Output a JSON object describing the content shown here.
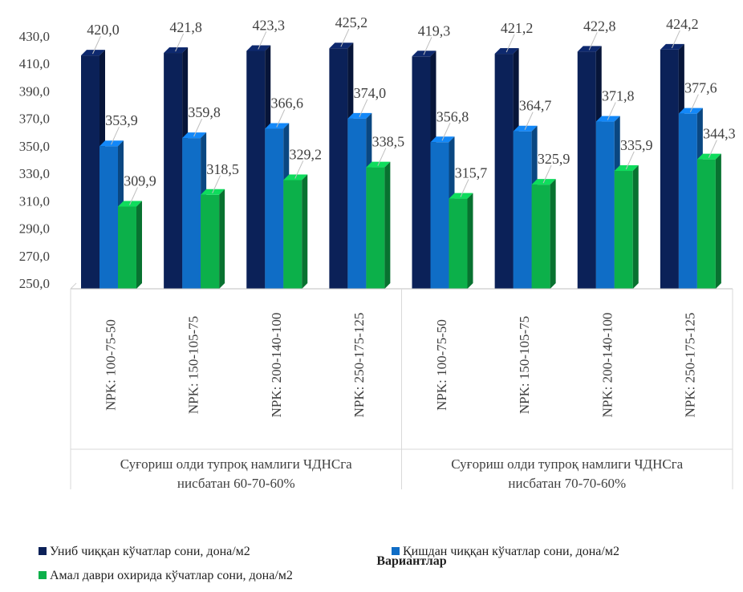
{
  "chart_data": {
    "type": "bar",
    "title": "",
    "xlabel": "Вариантлар",
    "ylabel": "",
    "ylim": [
      250,
      430
    ],
    "y_ticks": [
      "250,0",
      "270,0",
      "290,0",
      "310,0",
      "330,0",
      "350,0",
      "370,0",
      "390,0",
      "410,0",
      "430,0"
    ],
    "categories": [
      "NPK: 100-75-50",
      "NPK: 150-105-75",
      "NPK: 200-140-100",
      "NPK: 250-175-125",
      "NPK: 100-75-50",
      "NPK: 150-105-75",
      "NPK: 200-140-100",
      "NPK: 250-175-125"
    ],
    "groups": [
      {
        "label_lines": [
          "Суғориш олди тупроқ намлиги ЧДНСга",
          "нисбатан 60-70-60%"
        ]
      },
      {
        "label_lines": [
          "Суғориш олди тупроқ намлиги ЧДНСга",
          "нисбатан 70-70-60%"
        ]
      }
    ],
    "series": [
      {
        "name": "Униб чиққан кўчатлар сони, дона/м2",
        "color": "#0b2158",
        "values": [
          420.0,
          421.8,
          423.3,
          425.2,
          419.3,
          421.2,
          422.8,
          424.2
        ],
        "labels": [
          "420,0",
          "421,8",
          "423,3",
          "425,2",
          "419,3",
          "421,2",
          "422,8",
          "424,2"
        ]
      },
      {
        "name": "Қишдан чиққан кўчатлар сони, дона/м2",
        "color": "#0f6dc6",
        "values": [
          353.9,
          359.8,
          366.6,
          374.0,
          356.8,
          364.7,
          371.8,
          377.6
        ],
        "labels": [
          "353,9",
          "359,8",
          "366,6",
          "374,0",
          "356,8",
          "364,7",
          "371,8",
          "377,6"
        ]
      },
      {
        "name": "Амал даври охирида кўчатлар сони, дона/м2",
        "color": "#0cb04a",
        "values": [
          309.9,
          318.5,
          329.2,
          338.5,
          315.7,
          325.9,
          335.9,
          344.3
        ],
        "labels": [
          "309,9",
          "318,5",
          "329,2",
          "338,5",
          "315,7",
          "325,9",
          "335,9",
          "344,3"
        ]
      }
    ],
    "grid": false,
    "legend_position": "bottom"
  }
}
